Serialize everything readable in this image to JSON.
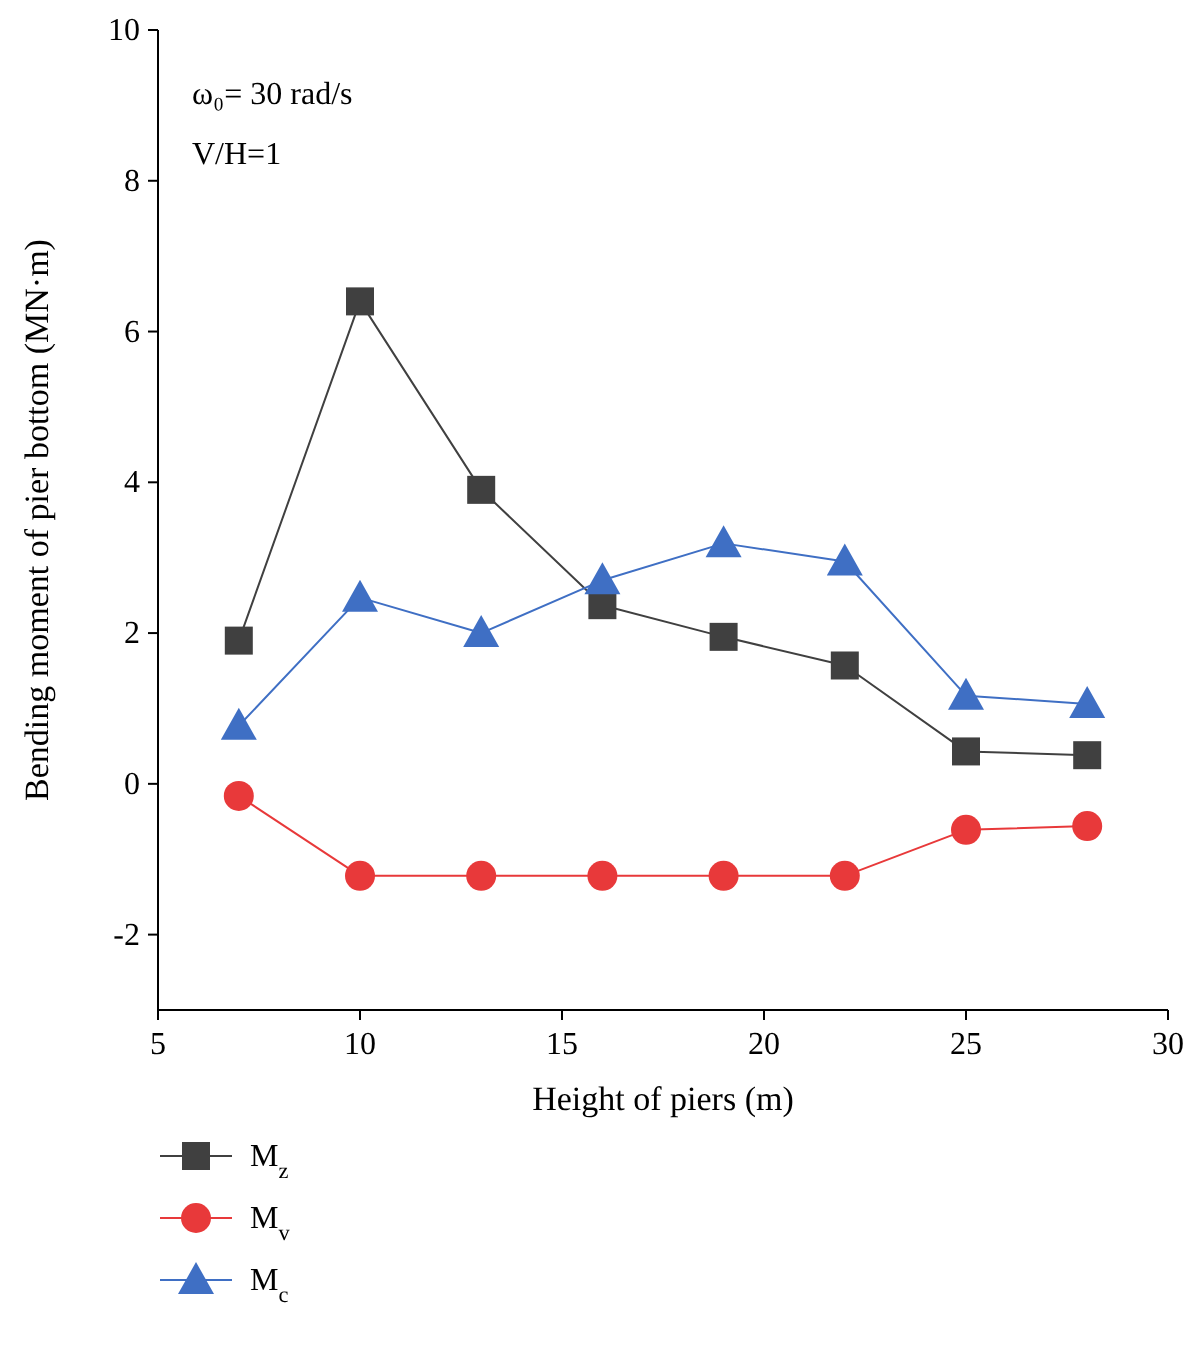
{
  "chart_data": {
    "type": "line",
    "xlabel": "Height of piers (m)",
    "ylabel": "Bending moment of pier bottom (MN·m)",
    "x": [
      7,
      10,
      13,
      16,
      19,
      22,
      25,
      28
    ],
    "xlim": [
      5,
      30
    ],
    "xticks": [
      5,
      10,
      15,
      20,
      25,
      30
    ],
    "ylim": [
      -3,
      10
    ],
    "yticks": [
      -2,
      0,
      2,
      4,
      6,
      8,
      10
    ],
    "grid": false,
    "legend": "bottom left",
    "line_style": "solid",
    "annotations": [
      "ω₀= 30 rad/s",
      "V/H=1"
    ],
    "series": [
      {
        "name": "M$_{z}$",
        "color": "#404040",
        "marker": "square",
        "values": [
          1.9,
          6.4,
          3.9,
          2.37,
          1.95,
          1.57,
          0.43,
          0.38
        ]
      },
      {
        "name": "M$_{v}$",
        "color": "#e8393a",
        "marker": "circle",
        "values": [
          -0.16,
          -1.22,
          -1.22,
          -1.22,
          -1.22,
          -1.22,
          -0.61,
          -0.56
        ]
      },
      {
        "name": "M$_{c}$",
        "color": "#3f6fc4",
        "marker": "triangle",
        "values": [
          0.77,
          2.47,
          2.0,
          2.7,
          3.19,
          2.95,
          1.17,
          1.06
        ]
      }
    ]
  }
}
